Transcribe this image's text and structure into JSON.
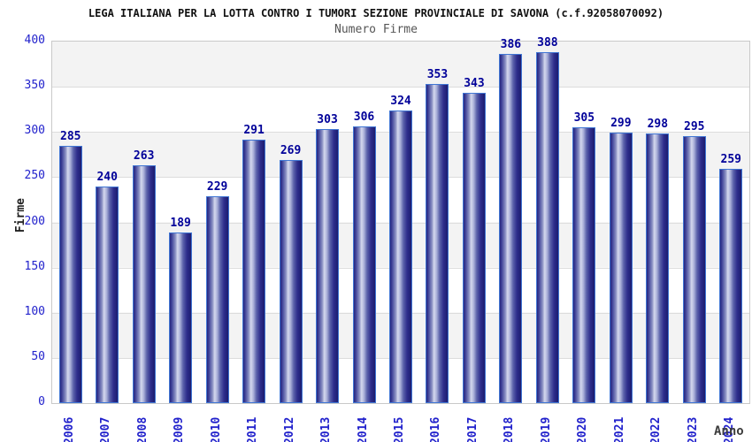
{
  "header": {
    "title": "LEGA ITALIANA PER LA LOTTA CONTRO I TUMORI SEZIONE PROVINCIALE DI SAVONA (c.f.92058070092)",
    "subtitle": "Numero Firme"
  },
  "chart_data": {
    "type": "bar",
    "title": "Numero Firme",
    "xlabel": "Anno",
    "ylabel": "Firme",
    "categories": [
      "2006",
      "2007",
      "2008",
      "2009",
      "2010",
      "2011",
      "2012",
      "2013",
      "2014",
      "2015",
      "2016",
      "2017",
      "2018",
      "2019",
      "2020",
      "2021",
      "2022",
      "2023",
      "2024"
    ],
    "values": [
      285,
      240,
      263,
      189,
      229,
      291,
      269,
      303,
      306,
      324,
      353,
      343,
      386,
      388,
      305,
      299,
      298,
      295,
      259
    ],
    "ylim": [
      0,
      400
    ],
    "yticks": [
      0,
      50,
      100,
      150,
      200,
      250,
      300,
      350,
      400
    ],
    "grid": "horizontal-bands",
    "legend": "none"
  },
  "colors": {
    "bar_border": "#4076d4",
    "bar_dark": "#1c1c6e",
    "bar_highlight": "#d5d9ee",
    "value_label": "#000099",
    "tick_label": "#2222cc",
    "band_gray": "#f3f3f3",
    "gridline": "#dcdcdc",
    "title": "#111111",
    "subtitle": "#555555"
  }
}
